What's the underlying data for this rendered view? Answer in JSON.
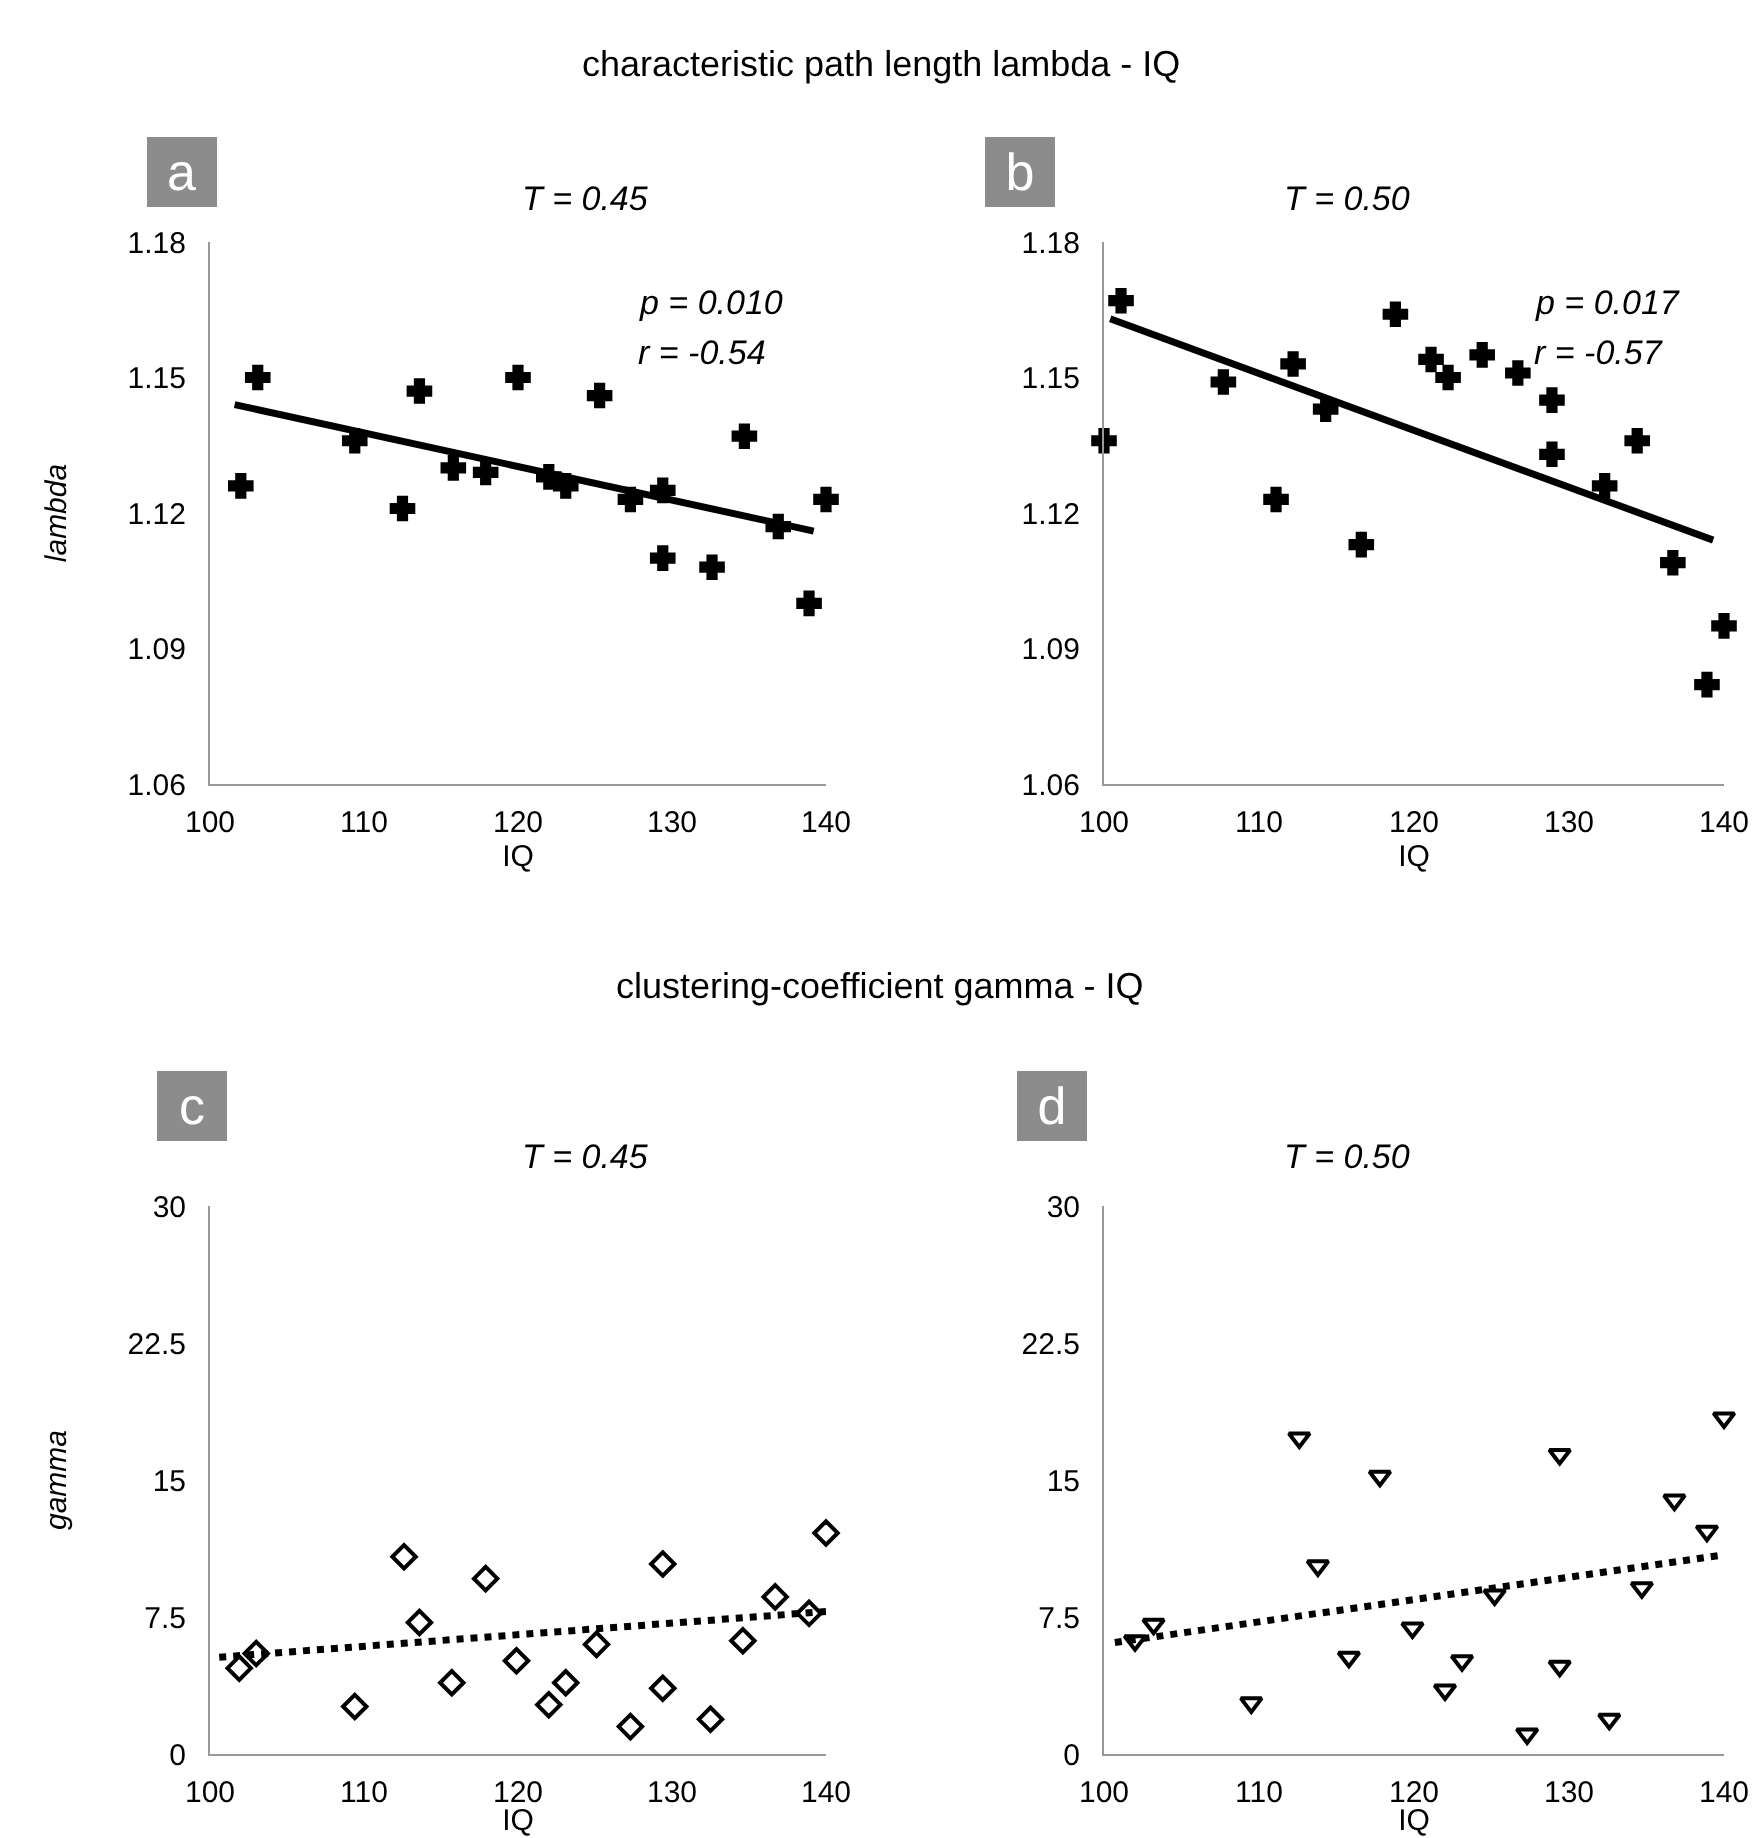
{
  "chart_data": [
    {
      "type": "scatter",
      "title": "T = 0.45",
      "xlabel": "IQ",
      "ylabel": "lambda",
      "annotations": [
        "characteristic path length lambda - IQ",
        "a",
        "p = 0.010",
        "r = -0.54"
      ],
      "xlim": [
        100,
        140
      ],
      "xticks": [
        100,
        110,
        120,
        130,
        140
      ],
      "ylim": [
        1.06,
        1.18
      ],
      "yticks": [
        1.06,
        1.09,
        1.12,
        1.15,
        1.18
      ],
      "marker": "cross",
      "series": [
        {
          "color": "#000000",
          "x": [
            102.0,
            103.1,
            109.4,
            112.5,
            113.6,
            115.8,
            117.9,
            120.0,
            122.0,
            123.1,
            125.3,
            127.3,
            129.4,
            129.4,
            132.6,
            134.7,
            136.9,
            138.9,
            140.0
          ],
          "values": [
            1.126,
            1.15,
            1.136,
            1.121,
            1.147,
            1.13,
            1.129,
            1.15,
            1.128,
            1.126,
            1.146,
            1.123,
            1.125,
            1.11,
            1.108,
            1.137,
            1.117,
            1.1,
            1.123
          ]
        },
        {
          "type": "line",
          "color": "#000000",
          "line_style": "solid",
          "marker": "none",
          "x": [
            101.6,
            139.2
          ],
          "values": [
            1.144,
            1.116
          ]
        }
      ]
    },
    {
      "type": "scatter",
      "title": "T = 0.50",
      "xlabel": "IQ",
      "annotations": [
        "b",
        "p = 0.017",
        "r = -0.57"
      ],
      "xlim": [
        100,
        140
      ],
      "xticks": [
        100,
        110,
        120,
        130,
        140
      ],
      "ylim": [
        1.06,
        1.18
      ],
      "yticks": [
        1.06,
        1.09,
        1.12,
        1.15,
        1.18
      ],
      "marker": "cross",
      "series": [
        {
          "color": "#000000",
          "x": [
            100.0,
            101.1,
            107.7,
            111.1,
            112.2,
            114.3,
            116.6,
            118.8,
            121.1,
            122.2,
            124.4,
            126.7,
            128.9,
            128.9,
            132.3,
            134.4,
            136.7,
            138.9,
            140.0
          ],
          "values": [
            1.136,
            1.167,
            1.149,
            1.123,
            1.153,
            1.143,
            1.113,
            1.164,
            1.154,
            1.15,
            1.155,
            1.151,
            1.145,
            1.133,
            1.126,
            1.136,
            1.109,
            1.082,
            1.095
          ]
        },
        {
          "type": "line",
          "color": "#000000",
          "line_style": "solid",
          "marker": "none",
          "x": [
            100.4,
            139.3
          ],
          "values": [
            1.163,
            1.114
          ]
        }
      ]
    },
    {
      "type": "scatter",
      "title": "T = 0.45",
      "xlabel": "IQ",
      "ylabel": "gamma",
      "annotations": [
        "clustering-coefficient gamma - IQ",
        "c"
      ],
      "xlim": [
        100,
        140
      ],
      "xticks": [
        100,
        110,
        120,
        130,
        140
      ],
      "ylim": [
        0,
        30
      ],
      "yticks": [
        0,
        7.5,
        15,
        22.5,
        30
      ],
      "marker": "diamond",
      "series": [
        {
          "color": "#000000",
          "x": [
            101.9,
            103.0,
            109.4,
            112.6,
            113.6,
            115.7,
            117.9,
            119.9,
            122.0,
            123.1,
            125.1,
            127.3,
            129.4,
            129.4,
            132.5,
            134.6,
            136.7,
            138.9,
            140.0
          ],
          "values": [
            4.7,
            5.5,
            2.6,
            10.8,
            7.2,
            3.9,
            9.6,
            5.1,
            2.7,
            3.9,
            6.0,
            1.5,
            10.4,
            3.6,
            1.9,
            6.2,
            8.6,
            7.7,
            12.1
          ]
        },
        {
          "type": "line",
          "color": "#000000",
          "line_style": "dotted",
          "marker": "none",
          "x": [
            100.6,
            140.0
          ],
          "values": [
            5.3,
            7.8
          ]
        }
      ]
    },
    {
      "type": "scatter",
      "title": "T = 0.50",
      "xlabel": "IQ",
      "annotations": [
        "d"
      ],
      "xlim": [
        100,
        140
      ],
      "xticks": [
        100,
        110,
        120,
        130,
        140
      ],
      "ylim": [
        0,
        30
      ],
      "yticks": [
        0,
        7.5,
        15,
        22.5,
        30
      ],
      "marker": "triangle",
      "series": [
        {
          "color": "#000000",
          "x": [
            102.0,
            103.2,
            109.5,
            112.6,
            113.8,
            115.8,
            117.8,
            119.9,
            122.0,
            123.1,
            125.2,
            127.3,
            129.4,
            129.4,
            132.6,
            134.7,
            136.8,
            138.9,
            140.0
          ],
          "values": [
            6.2,
            7.1,
            2.8,
            17.3,
            10.3,
            5.3,
            15.2,
            6.9,
            3.5,
            5.1,
            8.7,
            1.1,
            16.4,
            4.8,
            1.9,
            9.1,
            13.9,
            12.2,
            18.4
          ]
        },
        {
          "type": "line",
          "color": "#000000",
          "line_style": "dotted",
          "marker": "none",
          "x": [
            100.7,
            140.0
          ],
          "values": [
            6.1,
            10.9
          ]
        }
      ]
    }
  ]
}
